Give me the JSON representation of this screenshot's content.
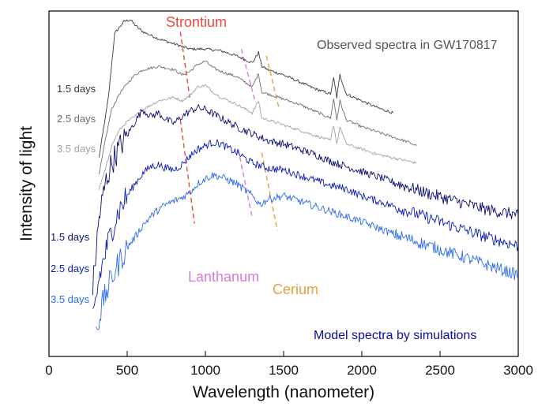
{
  "chart_data": {
    "type": "line",
    "xlabel": "Wavelength (nanometer)",
    "ylabel": "Intensity of light",
    "xlim": [
      0,
      3000
    ],
    "xticks": [
      0,
      500,
      1000,
      1500,
      2000,
      2500,
      3000
    ],
    "yticks_shown": false,
    "observed_title": "Observed spectra in GW170817",
    "model_title": "Model spectra by simulations",
    "element_labels": {
      "strontium": "Strontium",
      "lanthanum": "Lanthanum",
      "cerium": "Cerium"
    },
    "colors": {
      "obs_1_5": "#3a3a3a",
      "obs_2_5": "#6e6e6e",
      "obs_3_5": "#a2a2a2",
      "model_1_5": "#0b0f6e",
      "model_2_5": "#0a1bb8",
      "model_3_5": "#2d6bf0",
      "strontium": "#e84a3c",
      "lanthanum": "#d67bd6",
      "cerium": "#e6a040",
      "title_obs": "#555555",
      "title_model": "#0a0f9e"
    },
    "series": [
      {
        "name": "Observed 1.5 days",
        "label": "1.5 days",
        "group": "observed",
        "x": [
          320,
          380,
          420,
          480,
          520,
          560,
          600,
          650,
          700,
          800,
          900,
          1000,
          1100,
          1200,
          1300,
          1340,
          1360,
          1400,
          1500,
          1600,
          1700,
          1800,
          1820,
          1840,
          1860,
          1900,
          2000,
          2100,
          2200
        ],
        "y": [
          0.2,
          0.55,
          0.92,
          0.99,
          1.0,
          0.96,
          0.93,
          0.91,
          0.89,
          0.86,
          0.83,
          0.83,
          0.82,
          0.79,
          0.75,
          0.81,
          0.73,
          0.71,
          0.68,
          0.64,
          0.6,
          0.57,
          0.66,
          0.55,
          0.68,
          0.57,
          0.53,
          0.49,
          0.46
        ]
      },
      {
        "name": "Observed 2.5 days",
        "label": "2.5 days",
        "group": "observed",
        "x": [
          320,
          360,
          400,
          450,
          500,
          550,
          600,
          700,
          800,
          850,
          900,
          950,
          1000,
          1050,
          1100,
          1200,
          1300,
          1340,
          1360,
          1400,
          1500,
          1600,
          1700,
          1800,
          1820,
          1840,
          1860,
          1900,
          2000,
          2100,
          2200,
          2300,
          2350
        ],
        "y": [
          0.1,
          0.3,
          0.48,
          0.57,
          0.63,
          0.68,
          0.71,
          0.73,
          0.71,
          0.68,
          0.7,
          0.74,
          0.76,
          0.72,
          0.7,
          0.67,
          0.61,
          0.69,
          0.58,
          0.57,
          0.54,
          0.51,
          0.47,
          0.43,
          0.54,
          0.42,
          0.53,
          0.42,
          0.38,
          0.35,
          0.32,
          0.29,
          0.27
        ]
      },
      {
        "name": "Observed 3.5 days",
        "label": "3.5 days",
        "group": "observed",
        "x": [
          320,
          360,
          400,
          450,
          500,
          550,
          600,
          700,
          800,
          850,
          900,
          950,
          1000,
          1050,
          1100,
          1200,
          1300,
          1340,
          1360,
          1400,
          1500,
          1600,
          1700,
          1800,
          1820,
          1840,
          1860,
          1900,
          2000,
          2100,
          2200,
          2300,
          2350
        ],
        "y": [
          0.02,
          0.13,
          0.27,
          0.36,
          0.41,
          0.44,
          0.48,
          0.53,
          0.55,
          0.53,
          0.56,
          0.61,
          0.62,
          0.58,
          0.55,
          0.51,
          0.46,
          0.53,
          0.43,
          0.42,
          0.39,
          0.36,
          0.33,
          0.3,
          0.39,
          0.28,
          0.38,
          0.28,
          0.25,
          0.22,
          0.2,
          0.18,
          0.17
        ]
      },
      {
        "name": "Model 1.5 days",
        "label": "1.5 days",
        "group": "model",
        "x": [
          280,
          320,
          360,
          400,
          450,
          500,
          550,
          600,
          650,
          700,
          750,
          800,
          850,
          900,
          950,
          1000,
          1100,
          1200,
          1300,
          1400,
          1500,
          1600,
          1700,
          1800,
          1900,
          2000,
          2200,
          2400,
          2600,
          2800,
          3000
        ],
        "y": [
          -0.55,
          -0.15,
          0.05,
          0.17,
          0.26,
          0.33,
          0.41,
          0.48,
          0.44,
          0.46,
          0.42,
          0.4,
          0.44,
          0.47,
          0.49,
          0.48,
          0.43,
          0.38,
          0.34,
          0.3,
          0.28,
          0.25,
          0.22,
          0.18,
          0.15,
          0.12,
          0.06,
          0.0,
          -0.05,
          -0.1,
          -0.13
        ]
      },
      {
        "name": "Model 2.5 days",
        "label": "2.5 days",
        "group": "model",
        "x": [
          280,
          320,
          360,
          400,
          450,
          500,
          550,
          600,
          650,
          700,
          750,
          800,
          850,
          900,
          950,
          1000,
          1050,
          1100,
          1200,
          1300,
          1400,
          1500,
          1600,
          1700,
          1800,
          1900,
          2000,
          2200,
          2400,
          2600,
          2800,
          3000
        ],
        "y": [
          -0.75,
          -0.5,
          -0.35,
          -0.22,
          -0.1,
          -0.02,
          0.05,
          0.11,
          0.15,
          0.16,
          0.14,
          0.13,
          0.16,
          0.21,
          0.25,
          0.27,
          0.29,
          0.28,
          0.23,
          0.17,
          0.14,
          0.13,
          0.1,
          0.07,
          0.04,
          0.02,
          -0.02,
          -0.08,
          -0.14,
          -0.2,
          -0.26,
          -0.31
        ]
      },
      {
        "name": "Model 3.5 days",
        "label": "3.5 days",
        "group": "model",
        "x": [
          300,
          350,
          400,
          450,
          500,
          550,
          600,
          650,
          700,
          750,
          800,
          850,
          900,
          950,
          1000,
          1050,
          1100,
          1200,
          1300,
          1350,
          1400,
          1500,
          1600,
          1700,
          1800,
          1900,
          2000,
          2200,
          2400,
          2600,
          2800,
          3000
        ],
        "y": [
          -0.8,
          -0.62,
          -0.5,
          -0.4,
          -0.32,
          -0.26,
          -0.19,
          -0.14,
          -0.1,
          -0.07,
          -0.05,
          -0.03,
          0.0,
          0.05,
          0.08,
          0.1,
          0.09,
          0.05,
          -0.02,
          -0.07,
          -0.04,
          -0.02,
          -0.05,
          -0.08,
          -0.11,
          -0.14,
          -0.17,
          -0.24,
          -0.3,
          -0.36,
          -0.42,
          -0.48
        ]
      }
    ]
  }
}
